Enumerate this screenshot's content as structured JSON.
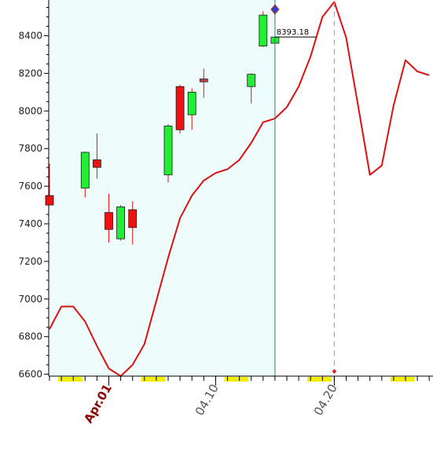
{
  "chart_data": {
    "type": "candlestick+line",
    "ylim": [
      6590,
      8590
    ],
    "y_ticks": [
      6600,
      6800,
      7000,
      7200,
      7400,
      7600,
      7800,
      8000,
      8200,
      8400
    ],
    "x_tick_labels": [
      {
        "label": "Apr.01",
        "day": 5,
        "emphasis": true
      },
      {
        "label": "04.10",
        "day": 14,
        "emphasis": false
      },
      {
        "label": "04.20",
        "day": 24,
        "emphasis": false
      }
    ],
    "day_range": [
      0,
      32
    ],
    "shaded_until_day": 19,
    "candles": [
      {
        "day": 0,
        "open": 7550,
        "high": 7720,
        "low": 7500,
        "close": 7500
      },
      {
        "day": 3,
        "open": 7590,
        "high": 7785,
        "low": 7540,
        "close": 7780
      },
      {
        "day": 4,
        "open": 7740,
        "high": 7880,
        "low": 7640,
        "close": 7700
      },
      {
        "day": 5,
        "open": 7460,
        "high": 7560,
        "low": 7300,
        "close": 7370
      },
      {
        "day": 6,
        "open": 7320,
        "high": 7500,
        "low": 7310,
        "close": 7490
      },
      {
        "day": 7,
        "open": 7475,
        "high": 7520,
        "low": 7290,
        "close": 7380
      },
      {
        "day": 10,
        "open": 7660,
        "high": 7930,
        "low": 7620,
        "close": 7920
      },
      {
        "day": 11,
        "open": 8130,
        "high": 8140,
        "low": 7880,
        "close": 7900
      },
      {
        "day": 12,
        "open": 7980,
        "high": 8120,
        "low": 7900,
        "close": 8100
      },
      {
        "day": 13,
        "open": 8170,
        "high": 8225,
        "low": 8070,
        "close": 8155
      },
      {
        "day": 17,
        "open": 8130,
        "high": 8200,
        "low": 8040,
        "close": 8195
      },
      {
        "day": 18,
        "open": 8345,
        "high": 8530,
        "low": 8340,
        "close": 8510
      },
      {
        "day": 19,
        "open": 8360,
        "high": 8395,
        "low": 8360,
        "close": 8393
      }
    ],
    "line": {
      "color": "#dd1111",
      "x": [
        0,
        1,
        2,
        3,
        4,
        5,
        6,
        7,
        8,
        9,
        10,
        11,
        12,
        13,
        14,
        15,
        16,
        17,
        18,
        19,
        20,
        21,
        22,
        23,
        24,
        25,
        26,
        27,
        28,
        29,
        30,
        31,
        32
      ],
      "y": [
        6840,
        6960,
        6960,
        6880,
        6750,
        6630,
        6590,
        6650,
        6760,
        6990,
        7220,
        7430,
        7550,
        7630,
        7670,
        7690,
        7740,
        7830,
        7940,
        7960,
        8020,
        8130,
        8290,
        8500,
        8580,
        8390,
        8030,
        7660,
        7710,
        8030,
        8270,
        8210,
        8190
      ]
    },
    "crosshair": {
      "day": 19,
      "value": "8393.18"
    },
    "dashed_marker_day": 24,
    "yellow_marks": [
      [
        1,
        2.5
      ],
      [
        8,
        9.5
      ],
      [
        15,
        16.5
      ],
      [
        22,
        23.5
      ],
      [
        29,
        30.5
      ]
    ],
    "colors": {
      "up": "#22ee33",
      "down": "#ee1111",
      "doji": "#c04040",
      "wick": "#ee1111",
      "line": "#dd1111",
      "shade": "#eefcfc",
      "crosshair": "#2a7f7f",
      "marker": "#2d40c8",
      "yellow": "#f2ef00"
    }
  }
}
